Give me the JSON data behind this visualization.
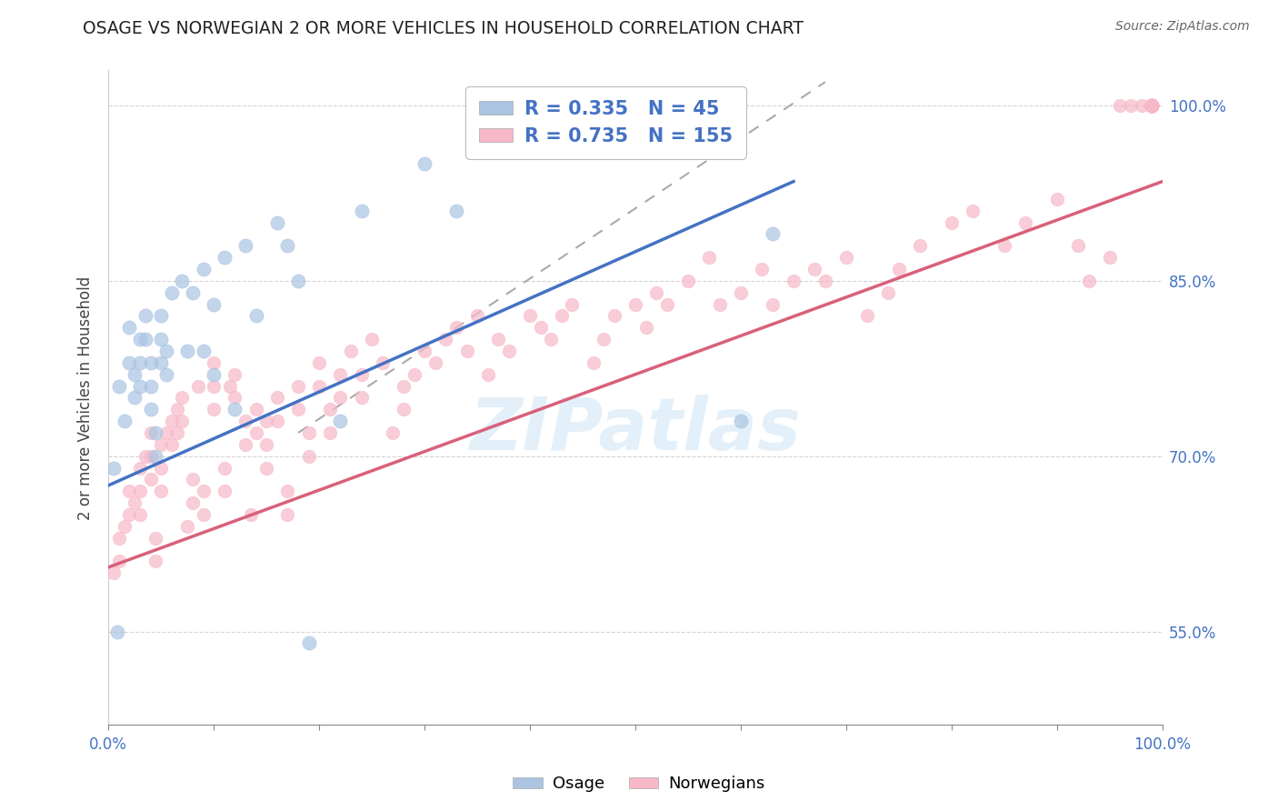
{
  "title": "OSAGE VS NORWEGIAN 2 OR MORE VEHICLES IN HOUSEHOLD CORRELATION CHART",
  "source": "Source: ZipAtlas.com",
  "ylabel": "2 or more Vehicles in Household",
  "watermark_text": "ZIPatlas",
  "legend_blue_r": "0.335",
  "legend_blue_n": "45",
  "legend_pink_r": "0.735",
  "legend_pink_n": "155",
  "blue_fill_color": "#aac4e2",
  "pink_fill_color": "#f7b8c8",
  "blue_line_color": "#4472c4",
  "pink_line_color": "#d9607a",
  "axis_tick_color": "#4472c4",
  "title_color": "#222222",
  "source_color": "#666666",
  "xmin": 0.0,
  "xmax": 1.0,
  "ymin": 0.47,
  "ymax": 1.03,
  "yticks": [
    0.55,
    0.7,
    0.85,
    1.0
  ],
  "ytick_labels": [
    "55.0%",
    "70.0%",
    "85.0%",
    "100.0%"
  ],
  "xtick_positions": [
    0.0,
    1.0
  ],
  "xtick_labels": [
    "0.0%",
    "100.0%"
  ],
  "blue_line_x0": 0.0,
  "blue_line_y0": 0.675,
  "blue_line_x1": 0.65,
  "blue_line_y1": 0.935,
  "pink_line_x0": 0.0,
  "pink_line_y0": 0.605,
  "pink_line_x1": 1.0,
  "pink_line_y1": 0.935,
  "dashed_line_x0": 0.18,
  "dashed_line_y0": 0.72,
  "dashed_line_x1": 0.68,
  "dashed_line_y1": 1.02,
  "background_color": "#ffffff",
  "grid_color": "#d0d0d0",
  "scatter_size_blue": 120,
  "scatter_size_pink": 110,
  "scatter_alpha": 0.7,
  "blue_x": [
    0.005,
    0.008,
    0.01,
    0.015,
    0.02,
    0.02,
    0.025,
    0.025,
    0.03,
    0.03,
    0.03,
    0.035,
    0.035,
    0.04,
    0.04,
    0.04,
    0.045,
    0.045,
    0.05,
    0.05,
    0.05,
    0.055,
    0.055,
    0.06,
    0.07,
    0.075,
    0.08,
    0.09,
    0.09,
    0.1,
    0.1,
    0.11,
    0.12,
    0.13,
    0.14,
    0.16,
    0.17,
    0.18,
    0.19,
    0.22,
    0.24,
    0.3,
    0.33,
    0.6,
    0.63
  ],
  "blue_y": [
    0.69,
    0.55,
    0.76,
    0.73,
    0.81,
    0.78,
    0.77,
    0.75,
    0.8,
    0.78,
    0.76,
    0.82,
    0.8,
    0.78,
    0.76,
    0.74,
    0.72,
    0.7,
    0.82,
    0.8,
    0.78,
    0.79,
    0.77,
    0.84,
    0.85,
    0.79,
    0.84,
    0.86,
    0.79,
    0.83,
    0.77,
    0.87,
    0.74,
    0.88,
    0.82,
    0.9,
    0.88,
    0.85,
    0.54,
    0.73,
    0.91,
    0.95,
    0.91,
    0.73,
    0.89
  ],
  "pink_x": [
    0.005,
    0.01,
    0.01,
    0.015,
    0.02,
    0.02,
    0.025,
    0.03,
    0.03,
    0.03,
    0.035,
    0.04,
    0.04,
    0.04,
    0.045,
    0.045,
    0.05,
    0.05,
    0.05,
    0.055,
    0.06,
    0.06,
    0.065,
    0.065,
    0.07,
    0.07,
    0.075,
    0.08,
    0.08,
    0.085,
    0.09,
    0.09,
    0.1,
    0.1,
    0.1,
    0.11,
    0.11,
    0.115,
    0.12,
    0.12,
    0.13,
    0.13,
    0.135,
    0.14,
    0.14,
    0.15,
    0.15,
    0.15,
    0.16,
    0.16,
    0.17,
    0.17,
    0.18,
    0.18,
    0.19,
    0.19,
    0.2,
    0.2,
    0.21,
    0.21,
    0.22,
    0.22,
    0.23,
    0.24,
    0.24,
    0.25,
    0.26,
    0.27,
    0.28,
    0.28,
    0.29,
    0.3,
    0.31,
    0.32,
    0.33,
    0.34,
    0.35,
    0.36,
    0.37,
    0.38,
    0.4,
    0.41,
    0.42,
    0.43,
    0.44,
    0.46,
    0.47,
    0.48,
    0.5,
    0.51,
    0.52,
    0.53,
    0.55,
    0.57,
    0.58,
    0.6,
    0.62,
    0.63,
    0.65,
    0.67,
    0.68,
    0.7,
    0.72,
    0.74,
    0.75,
    0.77,
    0.8,
    0.82,
    0.85,
    0.87,
    0.9,
    0.92,
    0.93,
    0.95,
    0.96,
    0.97,
    0.98,
    0.99,
    0.99,
    0.99,
    0.99,
    0.99,
    0.99,
    0.99,
    0.99,
    0.99,
    0.99,
    0.99,
    0.99,
    0.99,
    0.99,
    0.99,
    0.99,
    0.99,
    0.99,
    0.99,
    0.99,
    0.99,
    0.99,
    0.99,
    0.99,
    0.99,
    0.99,
    0.99,
    0.99,
    0.99,
    0.99,
    0.99,
    0.99,
    0.99,
    0.99,
    0.99,
    0.99,
    0.99,
    0.99
  ],
  "pink_y": [
    0.6,
    0.63,
    0.61,
    0.64,
    0.67,
    0.65,
    0.66,
    0.69,
    0.67,
    0.65,
    0.7,
    0.72,
    0.7,
    0.68,
    0.63,
    0.61,
    0.71,
    0.69,
    0.67,
    0.72,
    0.73,
    0.71,
    0.74,
    0.72,
    0.75,
    0.73,
    0.64,
    0.68,
    0.66,
    0.76,
    0.67,
    0.65,
    0.78,
    0.76,
    0.74,
    0.69,
    0.67,
    0.76,
    0.77,
    0.75,
    0.73,
    0.71,
    0.65,
    0.74,
    0.72,
    0.73,
    0.71,
    0.69,
    0.75,
    0.73,
    0.67,
    0.65,
    0.76,
    0.74,
    0.72,
    0.7,
    0.78,
    0.76,
    0.74,
    0.72,
    0.77,
    0.75,
    0.79,
    0.77,
    0.75,
    0.8,
    0.78,
    0.72,
    0.76,
    0.74,
    0.77,
    0.79,
    0.78,
    0.8,
    0.81,
    0.79,
    0.82,
    0.77,
    0.8,
    0.79,
    0.82,
    0.81,
    0.8,
    0.82,
    0.83,
    0.78,
    0.8,
    0.82,
    0.83,
    0.81,
    0.84,
    0.83,
    0.85,
    0.87,
    0.83,
    0.84,
    0.86,
    0.83,
    0.85,
    0.86,
    0.85,
    0.87,
    0.82,
    0.84,
    0.86,
    0.88,
    0.9,
    0.91,
    0.88,
    0.9,
    0.92,
    0.88,
    0.85,
    0.87,
    1.0,
    1.0,
    1.0,
    1.0,
    1.0,
    1.0,
    1.0,
    1.0,
    1.0,
    1.0,
    1.0,
    1.0,
    1.0,
    1.0,
    1.0,
    1.0,
    1.0,
    1.0,
    1.0,
    1.0,
    1.0,
    1.0,
    1.0,
    1.0,
    1.0,
    1.0,
    1.0,
    1.0,
    1.0,
    1.0,
    1.0,
    1.0,
    1.0,
    1.0,
    1.0,
    1.0,
    1.0,
    1.0,
    1.0,
    1.0,
    1.0
  ]
}
